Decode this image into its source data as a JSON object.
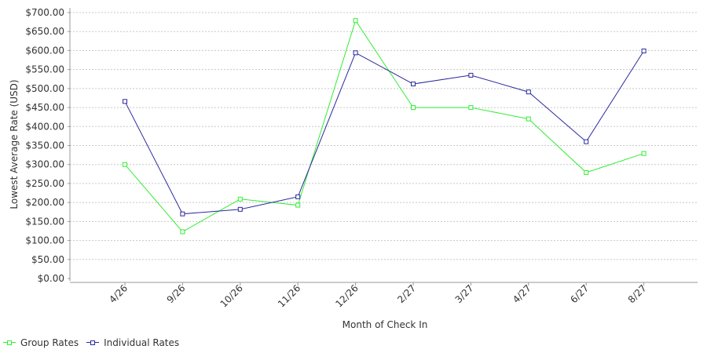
{
  "chart_data": {
    "type": "line",
    "xlabel": "Month of Check In",
    "ylabel": "Lowest Average Rate (USD)",
    "categories": [
      "4/26",
      "9/26",
      "10/26",
      "11/26",
      "12/26",
      "2/27",
      "3/27",
      "4/27",
      "6/27",
      "8/27"
    ],
    "y_ticks": [
      "$0.00",
      "$50.00",
      "$100.00",
      "$150.00",
      "$200.00",
      "$250.00",
      "$300.00",
      "$350.00",
      "$400.00",
      "$450.00",
      "$500.00",
      "$550.00",
      "$600.00",
      "$650.00",
      "$700.00"
    ],
    "ylim": [
      0,
      700
    ],
    "grid": true,
    "legend_position": "bottom-left",
    "series": [
      {
        "name": "Group Rates",
        "color": "#33ee33",
        "values": [
          300,
          123,
          209,
          193,
          679,
          450,
          450,
          420,
          279,
          329
        ]
      },
      {
        "name": "Individual Rates",
        "color": "#2a2a9e",
        "values": [
          466,
          170,
          182,
          215,
          594,
          512,
          535,
          491,
          360,
          599
        ]
      }
    ]
  }
}
